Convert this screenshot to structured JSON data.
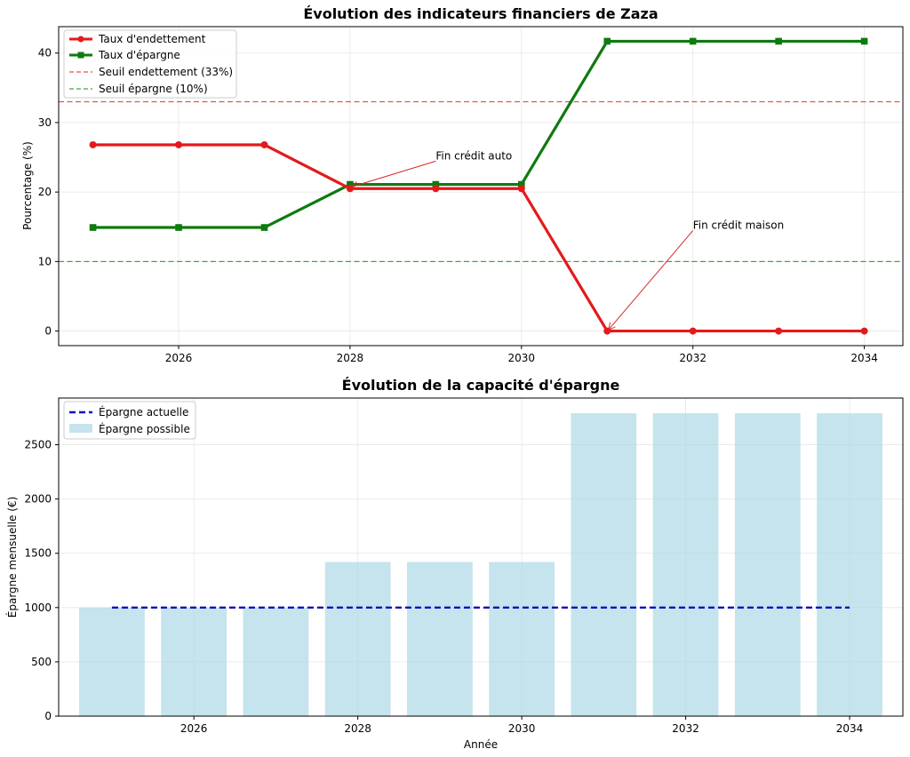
{
  "chart_data": [
    {
      "type": "line",
      "title": "Évolution des indicateurs financiers de Zaza",
      "xlabel": "",
      "ylabel": "Pourcentage (%)",
      "xlim": [
        2024.6,
        2034.45
      ],
      "ylim": [
        -2.1,
        43.8
      ],
      "xticks": [
        2026,
        2028,
        2030,
        2032,
        2034
      ],
      "yticks": [
        0,
        10,
        20,
        30,
        40
      ],
      "grid": true,
      "legend_position": "top-left",
      "x": [
        2025,
        2026,
        2027,
        2028,
        2029,
        2030,
        2031,
        2032,
        2033,
        2034
      ],
      "series": [
        {
          "name": "Taux d'endettement",
          "color": "#e31a1c",
          "marker": "circle",
          "values": [
            26.8,
            26.8,
            26.8,
            20.5,
            20.5,
            20.5,
            0,
            0,
            0,
            0
          ]
        },
        {
          "name": "Taux d'épargne",
          "color": "#0f7a0f",
          "marker": "square",
          "values": [
            14.9,
            14.9,
            14.9,
            21.1,
            21.1,
            21.1,
            41.7,
            41.7,
            41.7,
            41.7
          ]
        }
      ],
      "thresholds": [
        {
          "name": "Seuil endettement (33%)",
          "value": 33,
          "color": "#e8514c"
        },
        {
          "name": "Seuil épargne (10%)",
          "value": 10,
          "color": "#3ea83e"
        }
      ],
      "annotations": [
        {
          "text": "Fin crédit auto",
          "point": [
            2028,
            20.5
          ],
          "text_at": [
            2029,
            24.7
          ]
        },
        {
          "text": "Fin crédit maison",
          "point": [
            2031,
            0
          ],
          "text_at": [
            2032,
            14.7
          ]
        }
      ]
    },
    {
      "type": "bar",
      "title": "Évolution de la capacité d'épargne",
      "xlabel": "Année",
      "ylabel": "Épargne mensuelle (€)",
      "xlim": [
        2024.35,
        2034.65
      ],
      "ylim": [
        0,
        2930
      ],
      "xticks": [
        2026,
        2028,
        2030,
        2032,
        2034
      ],
      "yticks": [
        0,
        500,
        1000,
        1500,
        2000,
        2500
      ],
      "grid": true,
      "legend_position": "top-left",
      "categories": [
        2025,
        2026,
        2027,
        2028,
        2029,
        2030,
        2031,
        2032,
        2033,
        2034
      ],
      "series": [
        {
          "name": "Épargne possible",
          "kind": "bar",
          "color": "#add8e6",
          "values": [
            1000,
            1000,
            1000,
            1420,
            1420,
            1420,
            2790,
            2790,
            2790,
            2790
          ]
        },
        {
          "name": "Épargne actuelle",
          "kind": "line",
          "style": "dashed",
          "color": "#1010c0",
          "values": [
            1000,
            1000,
            1000,
            1000,
            1000,
            1000,
            1000,
            1000,
            1000,
            1000
          ]
        }
      ]
    }
  ]
}
